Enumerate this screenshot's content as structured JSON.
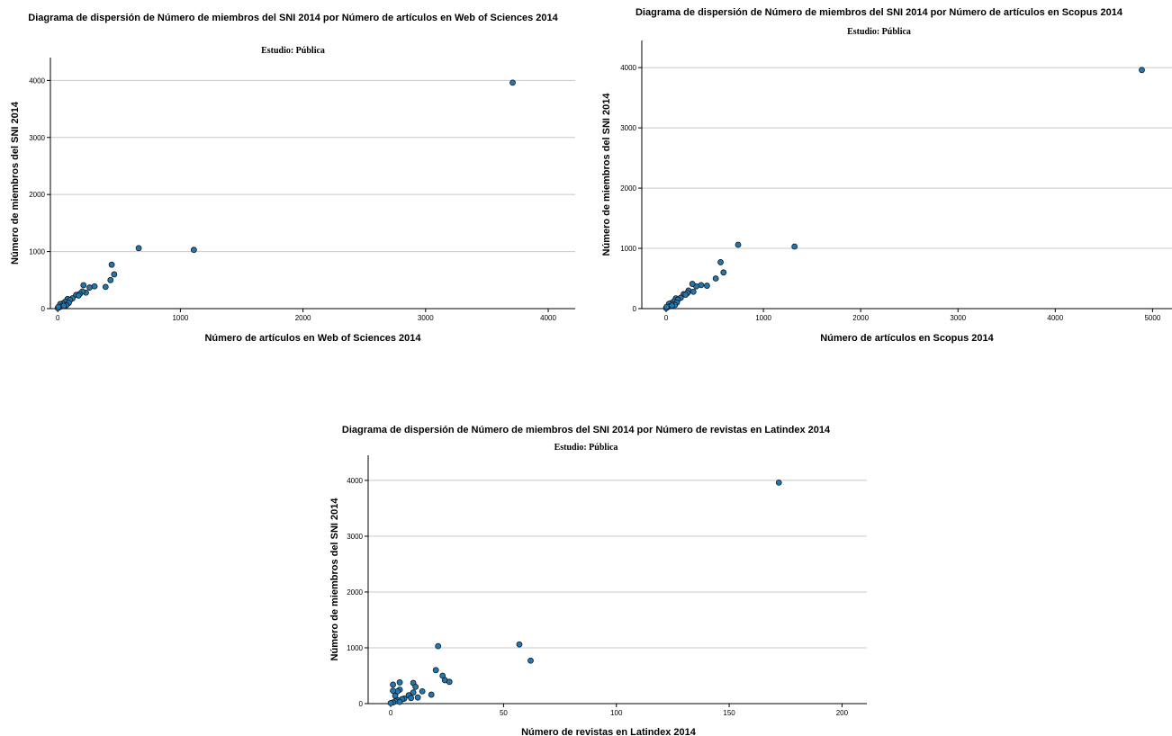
{
  "chart_data": [
    {
      "type": "scatter",
      "title": "Diagrama de dispersión de Número de miembros del SNI 2014 por Número de artículos en Web of Sciences 2014",
      "subtitle": "Estudio: Pública",
      "xlabel": "Número de artículos en Web of Sciences 2014",
      "ylabel": "Número de miembros del SNI 2014",
      "xlim": [
        -60,
        4220
      ],
      "ylim": [
        0,
        4400
      ],
      "xticks": [
        0,
        1000,
        2000,
        3000,
        4000
      ],
      "yticks": [
        0,
        1000,
        2000,
        3000,
        4000
      ],
      "grid": "horizontal",
      "marker_color": "#1f77b4",
      "points": [
        [
          3710,
          3960
        ],
        [
          660,
          1060
        ],
        [
          1110,
          1030
        ],
        [
          440,
          770
        ],
        [
          460,
          600
        ],
        [
          430,
          500
        ],
        [
          390,
          380
        ],
        [
          300,
          390
        ],
        [
          260,
          370
        ],
        [
          210,
          410
        ],
        [
          230,
          280
        ],
        [
          200,
          300
        ],
        [
          180,
          260
        ],
        [
          150,
          240
        ],
        [
          170,
          230
        ],
        [
          120,
          180
        ],
        [
          80,
          170
        ],
        [
          100,
          150
        ],
        [
          60,
          120
        ],
        [
          90,
          100
        ],
        [
          40,
          90
        ],
        [
          20,
          80
        ],
        [
          70,
          60
        ],
        [
          30,
          40
        ],
        [
          50,
          50
        ],
        [
          10,
          20
        ],
        [
          0,
          10
        ],
        [
          5,
          30
        ]
      ]
    },
    {
      "type": "scatter",
      "title": "Diagrama de dispersión de Número de miembros del SNI 2014 por Número de artículos en Scopus 2014",
      "subtitle": "Estudio: Pública",
      "xlabel": "Número de artículos en Scopus 2014",
      "ylabel": "Número de miembros del SNI 2014",
      "xlim": [
        -250,
        5200
      ],
      "ylim": [
        0,
        4450
      ],
      "xticks": [
        0,
        1000,
        2000,
        3000,
        4000,
        5000
      ],
      "yticks": [
        0,
        1000,
        2000,
        3000,
        4000
      ],
      "grid": "horizontal",
      "marker_color": "#1f77b4",
      "points": [
        [
          4890,
          3960
        ],
        [
          740,
          1060
        ],
        [
          1320,
          1030
        ],
        [
          560,
          770
        ],
        [
          590,
          600
        ],
        [
          510,
          500
        ],
        [
          420,
          380
        ],
        [
          360,
          390
        ],
        [
          310,
          370
        ],
        [
          270,
          410
        ],
        [
          280,
          280
        ],
        [
          230,
          300
        ],
        [
          220,
          260
        ],
        [
          180,
          240
        ],
        [
          200,
          230
        ],
        [
          150,
          180
        ],
        [
          100,
          170
        ],
        [
          120,
          150
        ],
        [
          80,
          120
        ],
        [
          110,
          100
        ],
        [
          50,
          90
        ],
        [
          30,
          80
        ],
        [
          90,
          60
        ],
        [
          40,
          40
        ],
        [
          60,
          50
        ],
        [
          10,
          20
        ],
        [
          0,
          10
        ],
        [
          5,
          30
        ]
      ]
    },
    {
      "type": "scatter",
      "title": "Diagrama de dispersión de Número de miembros del SNI 2014 por Número de revistas en Latindex 2014",
      "subtitle": "Estudio: Pública",
      "xlabel": "Número de revistas en Latindex 2014",
      "ylabel": "Número de miembros del SNI 2014",
      "xlim": [
        -10,
        211
      ],
      "ylim": [
        0,
        4450
      ],
      "xticks": [
        0,
        50,
        100,
        150,
        200
      ],
      "yticks": [
        0,
        1000,
        2000,
        3000,
        4000
      ],
      "grid": "horizontal",
      "marker_color": "#1f77b4",
      "points": [
        [
          172,
          3960
        ],
        [
          57,
          1060
        ],
        [
          21,
          1030
        ],
        [
          62,
          770
        ],
        [
          20,
          600
        ],
        [
          23,
          500
        ],
        [
          24,
          420
        ],
        [
          26,
          390
        ],
        [
          10,
          370
        ],
        [
          4,
          380
        ],
        [
          1,
          340
        ],
        [
          11,
          300
        ],
        [
          14,
          220
        ],
        [
          10,
          200
        ],
        [
          4,
          250
        ],
        [
          3,
          220
        ],
        [
          18,
          160
        ],
        [
          8,
          150
        ],
        [
          2,
          140
        ],
        [
          12,
          110
        ],
        [
          9,
          100
        ],
        [
          6,
          90
        ],
        [
          5,
          80
        ],
        [
          3,
          60
        ],
        [
          2,
          40
        ],
        [
          1,
          20
        ],
        [
          0,
          10
        ],
        [
          4,
          30
        ],
        [
          1,
          230
        ]
      ]
    }
  ]
}
